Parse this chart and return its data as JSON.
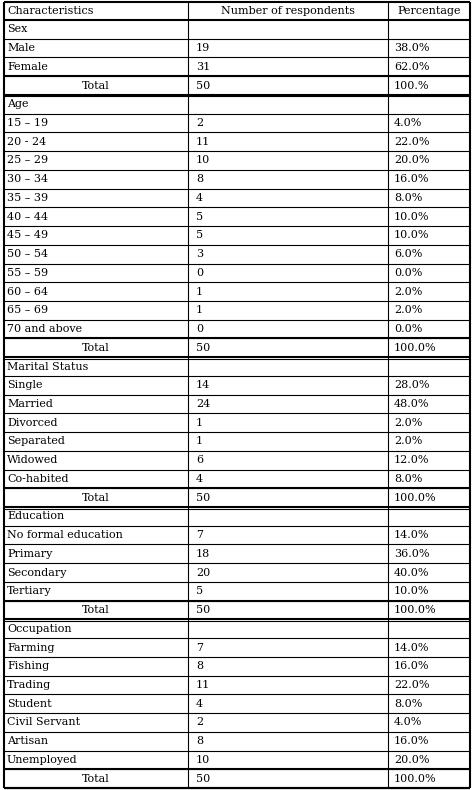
{
  "col_headers": [
    "Characteristics",
    "Number of respondents",
    "Percentage"
  ],
  "rows": [
    {
      "label": "Sex",
      "number": "",
      "percentage": "",
      "is_section": true,
      "total": false
    },
    {
      "label": "Male",
      "number": "19",
      "percentage": "38.0%",
      "is_section": false,
      "total": false
    },
    {
      "label": "Female",
      "number": "31",
      "percentage": "62.0%",
      "is_section": false,
      "total": false
    },
    {
      "label": "Total",
      "number": "50",
      "percentage": "100.%",
      "is_section": false,
      "total": true
    },
    {
      "label": "Age",
      "number": "",
      "percentage": "",
      "is_section": true,
      "total": false
    },
    {
      "label": "15 – 19",
      "number": "2",
      "percentage": "4.0%",
      "is_section": false,
      "total": false
    },
    {
      "label": "20 - 24",
      "number": "11",
      "percentage": "22.0%",
      "is_section": false,
      "total": false
    },
    {
      "label": "25 – 29",
      "number": "10",
      "percentage": "20.0%",
      "is_section": false,
      "total": false
    },
    {
      "label": "30 – 34",
      "number": "8",
      "percentage": "16.0%",
      "is_section": false,
      "total": false
    },
    {
      "label": "35 – 39",
      "number": "4",
      "percentage": "8.0%",
      "is_section": false,
      "total": false
    },
    {
      "label": "40 – 44",
      "number": "5",
      "percentage": "10.0%",
      "is_section": false,
      "total": false
    },
    {
      "label": "45 – 49",
      "number": "5",
      "percentage": "10.0%",
      "is_section": false,
      "total": false
    },
    {
      "label": "50 – 54",
      "number": "3",
      "percentage": "6.0%",
      "is_section": false,
      "total": false
    },
    {
      "label": "55 – 59",
      "number": "0",
      "percentage": "0.0%",
      "is_section": false,
      "total": false
    },
    {
      "label": "60 – 64",
      "number": "1",
      "percentage": "2.0%",
      "is_section": false,
      "total": false
    },
    {
      "label": "65 – 69",
      "number": "1",
      "percentage": "2.0%",
      "is_section": false,
      "total": false
    },
    {
      "label": "70 and above",
      "number": "0",
      "percentage": "0.0%",
      "is_section": false,
      "total": false
    },
    {
      "label": "Total",
      "number": "50",
      "percentage": "100.0%",
      "is_section": false,
      "total": true
    },
    {
      "label": "Marital Status",
      "number": "",
      "percentage": "",
      "is_section": true,
      "total": false
    },
    {
      "label": "Single",
      "number": "14",
      "percentage": "28.0%",
      "is_section": false,
      "total": false
    },
    {
      "label": "Married",
      "number": "24",
      "percentage": "48.0%",
      "is_section": false,
      "total": false
    },
    {
      "label": "Divorced",
      "number": "1",
      "percentage": "2.0%",
      "is_section": false,
      "total": false
    },
    {
      "label": "Separated",
      "number": "1",
      "percentage": "2.0%",
      "is_section": false,
      "total": false
    },
    {
      "label": "Widowed",
      "number": "6",
      "percentage": "12.0%",
      "is_section": false,
      "total": false
    },
    {
      "label": "Co-habited",
      "number": "4",
      "percentage": "8.0%",
      "is_section": false,
      "total": false
    },
    {
      "label": "Total",
      "number": "50",
      "percentage": "100.0%",
      "is_section": false,
      "total": true
    },
    {
      "label": "Education",
      "number": "",
      "percentage": "",
      "is_section": true,
      "total": false
    },
    {
      "label": "No formal education",
      "number": "7",
      "percentage": "14.0%",
      "is_section": false,
      "total": false
    },
    {
      "label": "Primary",
      "number": "18",
      "percentage": "36.0%",
      "is_section": false,
      "total": false
    },
    {
      "label": "Secondary",
      "number": "20",
      "percentage": "40.0%",
      "is_section": false,
      "total": false
    },
    {
      "label": "Tertiary",
      "number": "5",
      "percentage": "10.0%",
      "is_section": false,
      "total": false
    },
    {
      "label": "Total",
      "number": "50",
      "percentage": "100.0%",
      "is_section": false,
      "total": true
    },
    {
      "label": "Occupation",
      "number": "",
      "percentage": "",
      "is_section": true,
      "total": false
    },
    {
      "label": "Farming",
      "number": "7",
      "percentage": "14.0%",
      "is_section": false,
      "total": false
    },
    {
      "label": "Fishing",
      "number": "8",
      "percentage": "16.0%",
      "is_section": false,
      "total": false
    },
    {
      "label": "Trading",
      "number": "11",
      "percentage": "22.0%",
      "is_section": false,
      "total": false
    },
    {
      "label": "Student",
      "number": "4",
      "percentage": "8.0%",
      "is_section": false,
      "total": false
    },
    {
      "label": "Civil Servant",
      "number": "2",
      "percentage": "4.0%",
      "is_section": false,
      "total": false
    },
    {
      "label": "Artisan",
      "number": "8",
      "percentage": "16.0%",
      "is_section": false,
      "total": false
    },
    {
      "label": "Unemployed",
      "number": "10",
      "percentage": "20.0%",
      "is_section": false,
      "total": false
    },
    {
      "label": "Total",
      "number": "50",
      "percentage": "100.0%",
      "is_section": false,
      "total": true
    }
  ],
  "font_size": 8.0,
  "bg_color": "#ffffff",
  "text_color": "#000000",
  "line_color": "#000000"
}
